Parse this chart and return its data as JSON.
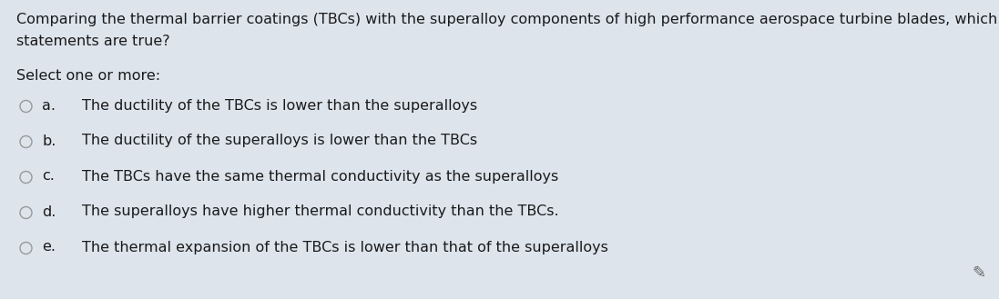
{
  "background_color": "#dde4ec",
  "title_line1": "Comparing the thermal barrier coatings (TBCs) with the superalloy components of high performance aerospace turbine blades, which of the following",
  "title_line2": "statements are true?",
  "select_label": "Select one or more:",
  "options": [
    {
      "key": "a.",
      "text": "The ductility of the TBCs is lower than the superalloys"
    },
    {
      "key": "b.",
      "text": "The ductility of the superalloys is lower than the TBCs"
    },
    {
      "key": "c.",
      "text": "The TBCs have the same thermal conductivity as the superalloys"
    },
    {
      "key": "d.",
      "text": "The superalloys have higher thermal conductivity than the TBCs."
    },
    {
      "key": "e.",
      "text": "The thermal expansion of the TBCs is lower than that of the superalloys"
    }
  ],
  "title_fontsize": 11.5,
  "option_fontsize": 11.5,
  "select_fontsize": 11.5,
  "text_color": "#1a1a1a",
  "circle_color": "#999999",
  "font_family": "DejaVu Sans"
}
